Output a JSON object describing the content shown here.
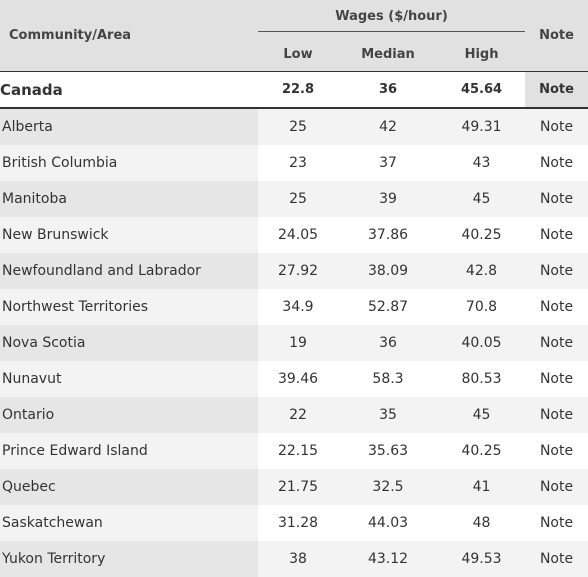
{
  "header": {
    "area_label": "Community/Area",
    "group_label": "Wages ($/hour)",
    "low_label": "Low",
    "median_label": "Median",
    "high_label": "High",
    "note_label": "Note"
  },
  "national": {
    "area": "Canada",
    "low": "22.8",
    "median": "36",
    "high": "45.64",
    "note": "Note"
  },
  "rows": [
    {
      "area": "Alberta",
      "low": "25",
      "median": "42",
      "high": "49.31",
      "note": "Note"
    },
    {
      "area": "British Columbia",
      "low": "23",
      "median": "37",
      "high": "43",
      "note": "Note"
    },
    {
      "area": "Manitoba",
      "low": "25",
      "median": "39",
      "high": "45",
      "note": "Note"
    },
    {
      "area": "New Brunswick",
      "low": "24.05",
      "median": "37.86",
      "high": "40.25",
      "note": "Note"
    },
    {
      "area": "Newfoundland and Labrador",
      "low": "27.92",
      "median": "38.09",
      "high": "42.8",
      "note": "Note"
    },
    {
      "area": "Northwest Territories",
      "low": "34.9",
      "median": "52.87",
      "high": "70.8",
      "note": "Note"
    },
    {
      "area": "Nova Scotia",
      "low": "19",
      "median": "36",
      "high": "40.05",
      "note": "Note"
    },
    {
      "area": "Nunavut",
      "low": "39.46",
      "median": "58.3",
      "high": "80.53",
      "note": "Note"
    },
    {
      "area": "Ontario",
      "low": "22",
      "median": "35",
      "high": "45",
      "note": "Note"
    },
    {
      "area": "Prince Edward Island",
      "low": "22.15",
      "median": "35.63",
      "high": "40.25",
      "note": "Note"
    },
    {
      "area": "Quebec",
      "low": "21.75",
      "median": "32.5",
      "high": "41",
      "note": "Note"
    },
    {
      "area": "Saskatchewan",
      "low": "31.28",
      "median": "44.03",
      "high": "48",
      "note": "Note"
    },
    {
      "area": "Yukon Territory",
      "low": "38",
      "median": "43.12",
      "high": "49.53",
      "note": "Note"
    }
  ]
}
